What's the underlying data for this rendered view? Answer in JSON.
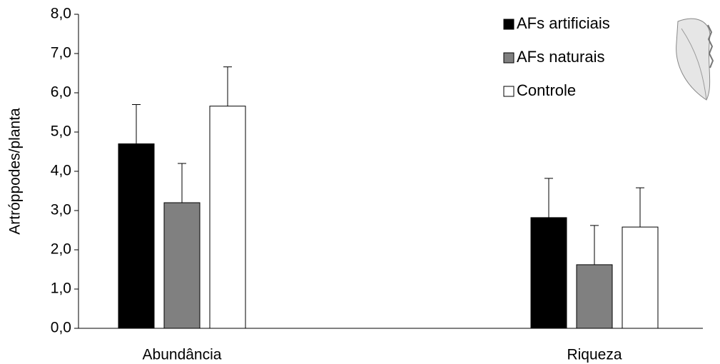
{
  "chart_data": {
    "type": "bar",
    "y_label": "Artróppodes/planta",
    "categories": [
      "Abundância",
      "Riqueza"
    ],
    "series": [
      {
        "name": "AFs artificiais",
        "color": "#000000",
        "values": [
          4.7,
          2.82
        ],
        "errors": [
          1.0,
          1.0
        ]
      },
      {
        "name": "AFs naturais",
        "color": "#808080",
        "values": [
          3.2,
          1.62
        ],
        "errors": [
          1.0,
          1.0
        ]
      },
      {
        "name": "Controle",
        "color": "#ffffff",
        "values": [
          5.66,
          2.58
        ],
        "errors": [
          1.0,
          1.0
        ]
      }
    ],
    "ylim": [
      0,
      8
    ],
    "yticks": [
      {
        "value": 0,
        "label": "0,0"
      },
      {
        "value": 1,
        "label": "1,0"
      },
      {
        "value": 2,
        "label": "2,0"
      },
      {
        "value": 3,
        "label": "3,0"
      },
      {
        "value": 4,
        "label": "4,0"
      },
      {
        "value": 5,
        "label": "5,0"
      },
      {
        "value": 6,
        "label": "6,0"
      },
      {
        "value": 7,
        "label": "7,0"
      },
      {
        "value": 8,
        "label": "8,0"
      }
    ],
    "legend": "top-right"
  }
}
